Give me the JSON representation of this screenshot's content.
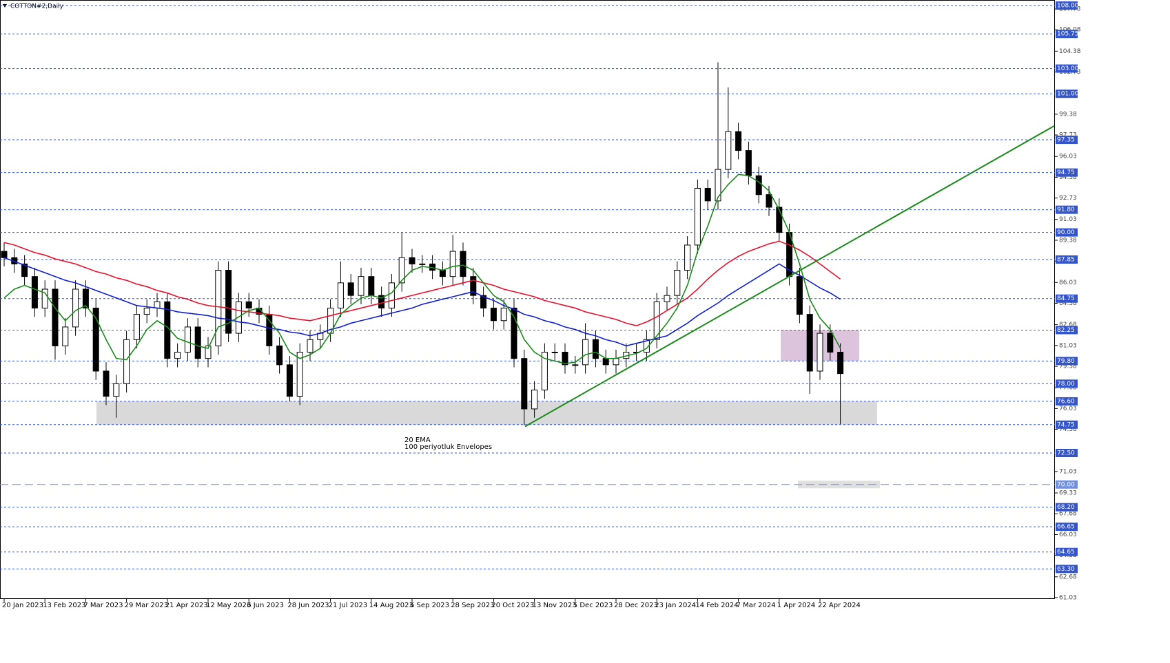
{
  "chart_data": {
    "type": "candlestick",
    "title": "COTTON#2,Daily",
    "categories": [
      "20 Jan 2023",
      null,
      null,
      null,
      "13 Feb 2023",
      null,
      null,
      null,
      "7 Mar 2023",
      null,
      null,
      null,
      "29 Mar 2023",
      null,
      null,
      null,
      "21 Apr 2023",
      null,
      null,
      null,
      "12 May 2023",
      null,
      null,
      null,
      "6 Jun 2023",
      null,
      null,
      null,
      "28 Jun 2023",
      null,
      null,
      null,
      "21 Jul 2023",
      null,
      null,
      null,
      "14 Aug 2023",
      null,
      null,
      null,
      "6 Sep 2023",
      null,
      null,
      null,
      "28 Sep 2023",
      null,
      null,
      null,
      "20 Oct 2023",
      null,
      null,
      null,
      "13 Nov 2023",
      null,
      null,
      null,
      "5 Dec 2023",
      null,
      null,
      null,
      "28 Dec 2023",
      null,
      null,
      null,
      "23 Jan 2024",
      null,
      null,
      null,
      "14 Feb 2024",
      null,
      null,
      null,
      "7 Mar 2024",
      null,
      null,
      null,
      "1 Apr 2024",
      null,
      null,
      null,
      "22 Apr 2024",
      null,
      null
    ],
    "open": [
      88.5,
      88,
      87.5,
      86.5,
      84,
      85.5,
      81,
      82.5,
      85.5,
      84,
      79,
      77,
      78,
      81.5,
      83.5,
      84,
      84.5,
      80,
      80.5,
      82.5,
      80,
      81,
      87,
      82,
      84.5,
      84,
      83.5,
      81,
      79.5,
      77,
      80.5,
      81.5,
      82,
      84,
      86,
      85,
      86.5,
      85,
      84,
      86,
      88,
      87.5,
      87.5,
      87,
      86.5,
      88.5,
      86.5,
      85,
      84,
      83,
      84,
      80,
      76,
      77.5,
      80.5,
      80.5,
      79.5,
      79.5,
      81.5,
      80,
      79.5,
      80,
      80.5,
      80.5,
      81.5,
      84.5,
      85,
      87,
      89,
      93.5,
      92.5,
      95,
      98,
      96.5,
      94.5,
      93,
      92,
      90,
      86.5,
      83.5,
      79,
      82,
      80.5
    ],
    "high": [
      89.2,
      88.7,
      88.2,
      87.2,
      86.2,
      86.2,
      83.2,
      86.2,
      86.2,
      84.7,
      79.7,
      78.7,
      82.2,
      84.2,
      84.7,
      85.2,
      85.2,
      81.2,
      83.2,
      83.2,
      81.7,
      87.7,
      87.7,
      85.2,
      85.2,
      84.7,
      84.2,
      81.7,
      80.2,
      81.2,
      82.2,
      82.7,
      84.7,
      87.7,
      86.7,
      87.2,
      87.2,
      85.7,
      86.7,
      90,
      88.7,
      88.2,
      88.2,
      87.7,
      89.8,
      89.2,
      87.2,
      85.7,
      84.7,
      84.7,
      84.7,
      80.7,
      78.2,
      81.2,
      81.2,
      81.2,
      80.2,
      82.8,
      82.2,
      80.7,
      80.7,
      81.2,
      81.2,
      82.2,
      85.2,
      85.7,
      87.7,
      89.7,
      94.2,
      94.2,
      103.5,
      101.5,
      98.7,
      97.2,
      95.2,
      93.7,
      92.7,
      90.7,
      87.2,
      84.2,
      82.7,
      82.7,
      81.2
    ],
    "low": [
      87.3,
      86.8,
      85.8,
      83.3,
      83.3,
      79.9,
      80.3,
      81.8,
      83.3,
      78.3,
      76.3,
      75.3,
      77.3,
      80.8,
      82.8,
      83.3,
      79.3,
      79.3,
      79.8,
      79.3,
      79.3,
      80.3,
      81.3,
      81.3,
      83.3,
      82.8,
      80.3,
      78.8,
      76.6,
      76.3,
      79.8,
      80.8,
      81.3,
      83.3,
      84.3,
      84.3,
      84.3,
      83.3,
      83.3,
      85.3,
      86.8,
      86.8,
      86.3,
      85.8,
      85.8,
      85.8,
      84.3,
      83.3,
      82.3,
      82.3,
      79.3,
      74.7,
      75.3,
      76.8,
      79.8,
      78.8,
      78.8,
      78.8,
      79.3,
      78.8,
      78.8,
      79.3,
      79.8,
      79.8,
      80.8,
      83.8,
      84.3,
      86.3,
      88.3,
      91.8,
      91.8,
      94.3,
      95.8,
      93.8,
      92.3,
      91.3,
      89.3,
      85.8,
      82.8,
      77.2,
      78.3,
      79.8,
      74.8
    ],
    "close": [
      88,
      87.5,
      86.5,
      84,
      85.5,
      81,
      82.5,
      85.5,
      84,
      79,
      77,
      78,
      81.5,
      83.5,
      84,
      84.5,
      80,
      80.5,
      82.5,
      80,
      81,
      87,
      82,
      84.5,
      84,
      83.5,
      81,
      79.5,
      77,
      80.5,
      81.5,
      82,
      84,
      86,
      85,
      86.5,
      85,
      84,
      86,
      88,
      87.5,
      87.5,
      87,
      86.5,
      88.5,
      86.5,
      85,
      84,
      83,
      84,
      80,
      76,
      77.5,
      80.5,
      80.5,
      79.5,
      79.5,
      81.5,
      80,
      79.5,
      80,
      80.5,
      80.5,
      81.5,
      84.5,
      85,
      87,
      89,
      93.5,
      92.5,
      95,
      98,
      96.5,
      94.5,
      93,
      92,
      90,
      86.5,
      83.5,
      79,
      82,
      80.5,
      78.8
    ],
    "up_color": "#ffffff",
    "down_color": "#000000",
    "wick_color": "#000000",
    "lines": [
      {
        "color": "#e8102a",
        "values": [
          89.2,
          89,
          88.7,
          88.4,
          88.2,
          87.9,
          87.7,
          87.5,
          87.2,
          86.9,
          86.7,
          86.4,
          86.2,
          85.9,
          85.7,
          85.4,
          85.2,
          84.9,
          84.7,
          84.4,
          84.2,
          84.1,
          84,
          83.8,
          83.7,
          83.6,
          83.5,
          83.4,
          83.2,
          83.1,
          83,
          83.2,
          83.4,
          83.6,
          83.8,
          84,
          84.2,
          84.4,
          84.6,
          84.8,
          85,
          85.2,
          85.4,
          85.6,
          85.8,
          86,
          86.2,
          86,
          85.8,
          85.5,
          85.3,
          85.1,
          84.9,
          84.6,
          84.4,
          84.2,
          84,
          83.7,
          83.5,
          83.3,
          83.1,
          82.8,
          82.6,
          82.9,
          83.3,
          83.8,
          84.3,
          84.8,
          85.5,
          86.3,
          87,
          87.6,
          88.1,
          88.5,
          88.8,
          89.1,
          89.3,
          89,
          88.6,
          88.1,
          87.5,
          86.9,
          86.3
        ]
      },
      {
        "color": "#1020d0",
        "values": [
          88,
          87.7,
          87.4,
          87.1,
          86.8,
          86.5,
          86.2,
          86,
          85.7,
          85.4,
          85.1,
          84.8,
          84.5,
          84.2,
          84.1,
          84,
          83.9,
          83.7,
          83.6,
          83.5,
          83.4,
          83.2,
          83.1,
          82.9,
          82.8,
          82.6,
          82.4,
          82.3,
          82.1,
          82,
          81.8,
          82,
          82.3,
          82.5,
          82.8,
          83,
          83.2,
          83.4,
          83.6,
          83.8,
          84,
          84.3,
          84.5,
          84.7,
          84.9,
          85.1,
          85.3,
          84.9,
          84.6,
          84.2,
          83.9,
          83.5,
          83.3,
          83,
          82.8,
          82.5,
          82.3,
          82,
          81.8,
          81.5,
          81.3,
          81,
          81.2,
          81.4,
          81.6,
          81.8,
          82.3,
          82.8,
          83.4,
          83.9,
          84.4,
          85,
          85.5,
          86,
          86.5,
          87,
          87.5,
          87,
          86.6,
          86.1,
          85.6,
          85.2,
          84.7
        ]
      },
      {
        "color": "#1a8a1a",
        "values": [
          84.8,
          85.5,
          85.8,
          85.5,
          85.2,
          84,
          83,
          83.8,
          84.2,
          83.2,
          81.5,
          80,
          79.9,
          81,
          82.3,
          83,
          82.5,
          81.6,
          81.3,
          81,
          80.8,
          82.5,
          82.8,
          83.3,
          83.8,
          84,
          83,
          82,
          80.5,
          80,
          80.3,
          80.8,
          82,
          83.5,
          84.2,
          84.8,
          85,
          84.8,
          85.2,
          86.2,
          87,
          87.3,
          87.2,
          87,
          87.3,
          87.4,
          87,
          86,
          85,
          84.5,
          83.3,
          81.5,
          80.5,
          80,
          79.8,
          79.6,
          79.7,
          80.3,
          80.5,
          80,
          80,
          80.2,
          80.4,
          80.8,
          81.8,
          82.8,
          84,
          85.8,
          88.5,
          90.5,
          92.8,
          93.8,
          94.6,
          94.5,
          94,
          93.3,
          91.8,
          90,
          87.5,
          84.7,
          83.2,
          82.3,
          80.8
        ]
      }
    ],
    "ylim": [
      60.92,
      108.44
    ],
    "yticks": [
      61.03,
      62.68,
      64.38,
      66.03,
      67.68,
      69.33,
      71.03,
      74.38,
      76.03,
      77.68,
      79.38,
      81.03,
      82.68,
      84.38,
      86.03,
      87.73,
      89.38,
      91.03,
      92.73,
      94.38,
      96.03,
      97.73,
      99.38,
      102.73,
      104.38,
      106.08,
      107.73
    ],
    "level_color": "#3355cc",
    "levels": [
      {
        "value": 108,
        "label": "108.00"
      },
      105.75,
      {
        "value": 103,
        "label": "103.00"
      },
      {
        "value": 101,
        "label": "101.00"
      },
      97.35,
      94.75,
      {
        "value": 91.8,
        "label": "91.80"
      },
      {
        "value": 90,
        "label": "90.00"
      },
      87.85,
      84.75,
      82.25,
      {
        "value": 79.8,
        "label": "79.80"
      },
      {
        "value": 78,
        "label": "78.00"
      },
      {
        "value": 76.6,
        "label": "76.60"
      },
      74.75,
      {
        "value": 72.5,
        "label": "72.50"
      },
      {
        "value": 68.2,
        "label": "68.20"
      },
      66.65,
      64.65,
      {
        "value": 63.3,
        "label": "63.30"
      }
    ],
    "long_dash_levels": [
      {
        "value": 70,
        "label": "70.00"
      }
    ],
    "long_dash_color": "#7090e0",
    "zones": [
      {
        "from": 74.75,
        "to": 76.6,
        "color": "#d9d9d9"
      },
      {
        "from": 79.8,
        "to": 82.25,
        "color": "#dcc4dc"
      },
      {
        "from": 69.7,
        "to": 70.3,
        "color": "#e0e0e0"
      }
    ],
    "trendline": {
      "from": 74.6,
      "to": 88.7,
      "color": "#1a8a1a"
    },
    "annotations": [
      {
        "text": "20 EMA",
        "color": "#1a8a1a"
      },
      {
        "text": "100 periyotluk Envelopes",
        "color": "#1020d0"
      }
    ]
  }
}
